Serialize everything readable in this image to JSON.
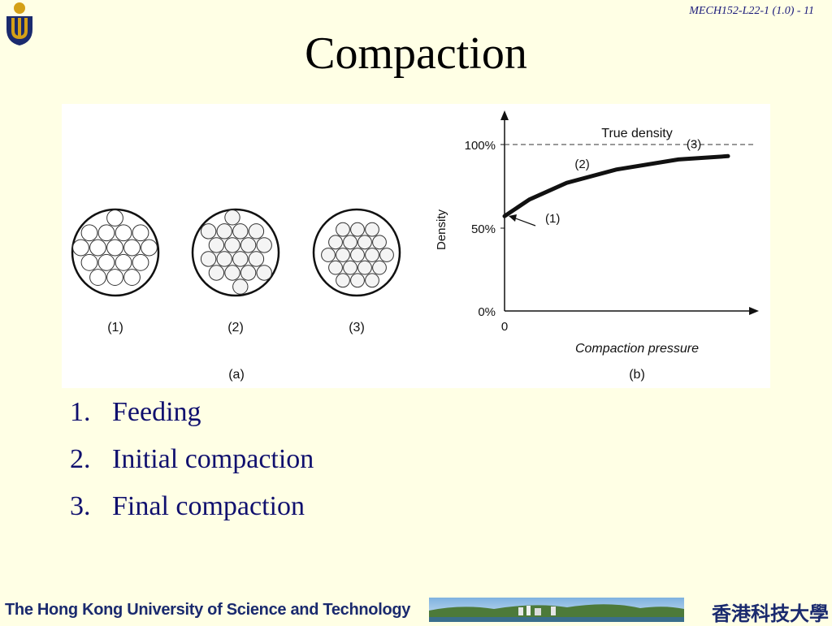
{
  "slide": {
    "reference": "MECH152-L22-1 (1.0) - 11",
    "title": "Compaction"
  },
  "figure": {
    "panel_a": {
      "stage_labels": [
        "(1)",
        "(2)",
        "(3)"
      ],
      "caption": "(a)"
    },
    "panel_b": {
      "caption": "(b)",
      "y_axis_label": "Density",
      "x_axis_label": "Compaction pressure",
      "y_ticks": [
        "100%",
        "50%",
        "0%"
      ],
      "x_origin_label": "0",
      "reference_line_label": "True density",
      "curve_labels": [
        "(1)",
        "(2)",
        "(3)"
      ]
    },
    "chart_data": {
      "type": "line",
      "xlabel": "Compaction pressure",
      "ylabel": "Density",
      "ylim": [
        0,
        100
      ],
      "reference": {
        "label": "True density",
        "y": 100
      },
      "series": [
        {
          "x": [
            0,
            0.1,
            0.25,
            0.45,
            0.7,
            0.9
          ],
          "values": [
            57,
            67,
            77,
            85,
            91,
            93
          ]
        }
      ],
      "annotations": [
        {
          "label": "(1)",
          "x": 0,
          "y": 57
        },
        {
          "label": "(2)",
          "x": 0.25,
          "y": 77
        },
        {
          "label": "(3)",
          "x": 0.7,
          "y": 91
        }
      ]
    }
  },
  "steps": [
    {
      "number": "1.",
      "text": "Feeding"
    },
    {
      "number": "2.",
      "text": "Initial compaction"
    },
    {
      "number": "3.",
      "text": "Final compaction"
    }
  ],
  "footer": {
    "university": "The Hong Kong University of Science and Technology",
    "chinese_name": "香港科技大學"
  }
}
